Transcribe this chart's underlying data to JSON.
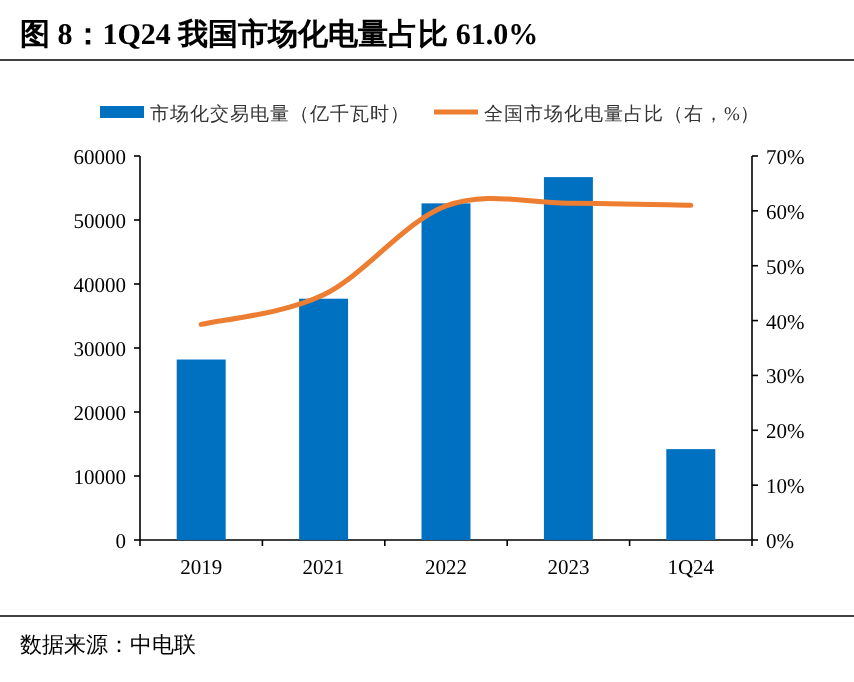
{
  "chart_data": {
    "type": "bar",
    "title": "图 8：1Q24 我国市场化电量占比 61.0%",
    "annotations": [
      "数据来源：中电联"
    ],
    "categories": [
      "2019",
      "2021",
      "2022",
      "2023",
      "1Q24"
    ],
    "series": [
      {
        "name": "市场化交易电量（亿千瓦时）",
        "color": "#0070c0",
        "values": [
          28200,
          37700,
          52600,
          56700,
          14200
        ]
      },
      {
        "name": "全国市场化电量占比（右，%）",
        "type": "line",
        "axis": "y2",
        "color": "#ed7d31",
        "values": [
          39.3,
          44.7,
          60.9,
          61.4,
          61.0
        ]
      }
    ],
    "ylim": [
      0,
      60000
    ],
    "yticks": [
      0,
      10000,
      20000,
      30000,
      40000,
      50000,
      60000
    ],
    "y2lim": [
      0,
      70
    ],
    "y2ticks": [
      {
        "value": 0,
        "label": "0%"
      },
      {
        "value": 10,
        "label": "10%"
      },
      {
        "value": 20,
        "label": "20%"
      },
      {
        "value": 30,
        "label": "30%"
      },
      {
        "value": 40,
        "label": "40%"
      },
      {
        "value": 50,
        "label": "50%"
      },
      {
        "value": 60,
        "label": "60%"
      },
      {
        "value": 70,
        "label": "70%"
      }
    ],
    "grid": false,
    "legend": "top",
    "marker": "none",
    "line_style": "solid"
  }
}
